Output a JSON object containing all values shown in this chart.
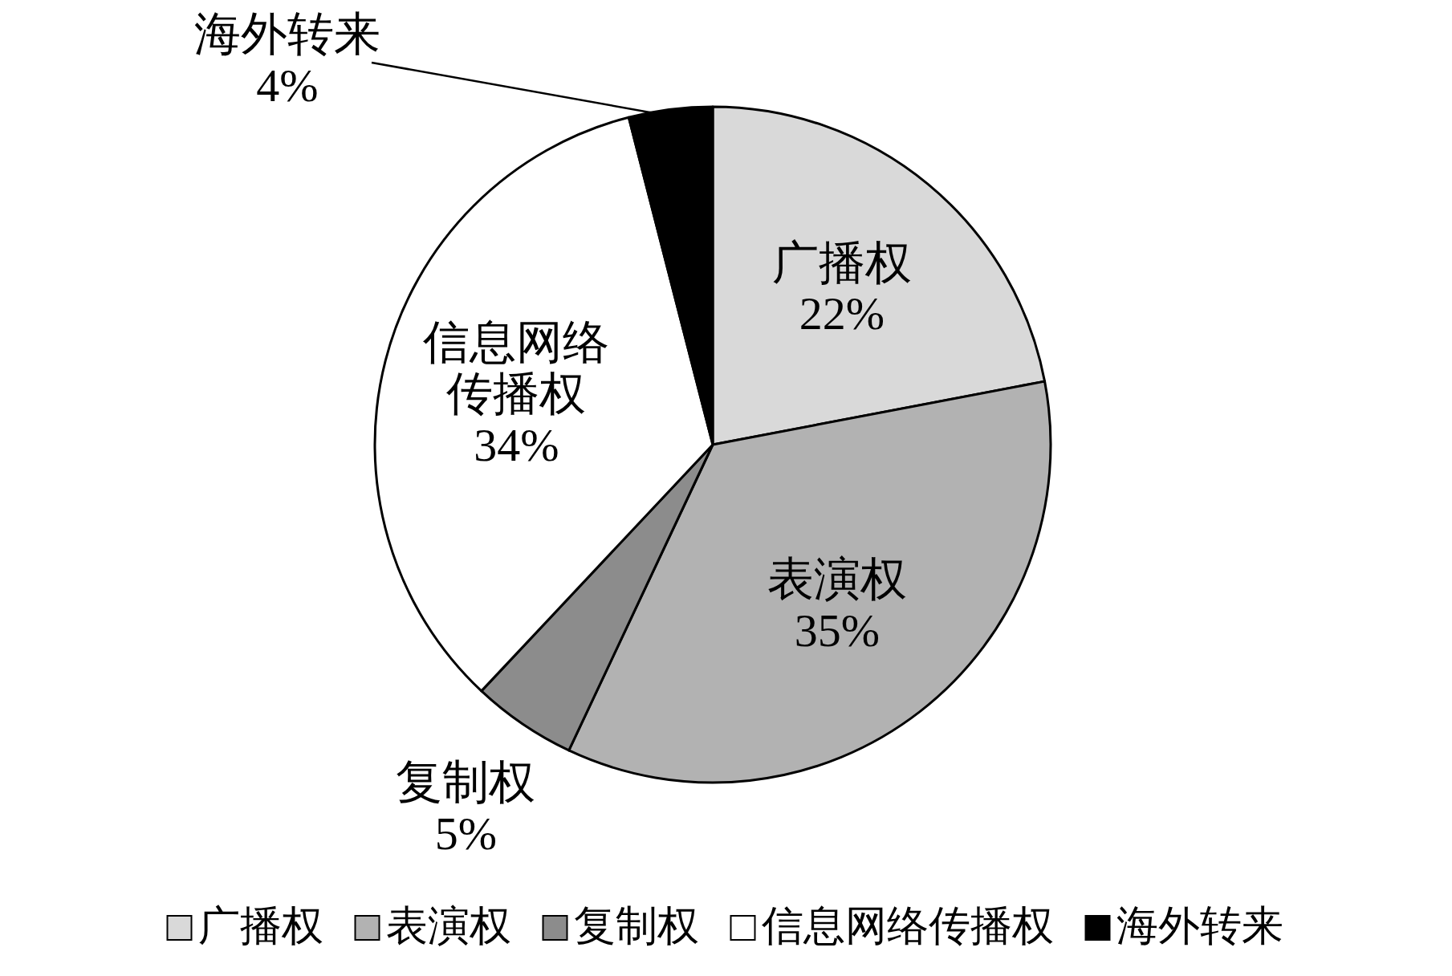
{
  "chart_data": {
    "type": "pie",
    "categories": [
      "广播权",
      "表演权",
      "复制权",
      "信息网络传播权",
      "海外转来"
    ],
    "values": [
      22,
      35,
      5,
      34,
      4
    ],
    "colors": [
      "#d9d9d9",
      "#b2b2b2",
      "#8c8c8c",
      "#ffffff",
      "#000000"
    ],
    "value_labels": [
      "22%",
      "35%",
      "5%",
      "34%",
      "4%"
    ],
    "legend": "bottom"
  }
}
